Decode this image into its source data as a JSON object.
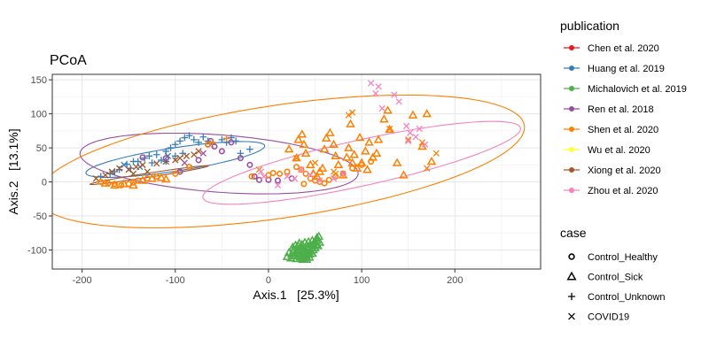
{
  "chart_data": {
    "type": "scatter",
    "title": "PCoA",
    "xlabel": "Axis.1   [25.3%]",
    "ylabel": "Axis.2   [13.1%]",
    "xlim": [
      -232,
      292
    ],
    "ylim": [
      -128,
      158
    ],
    "xticks": [
      -200,
      -100,
      0,
      100,
      200
    ],
    "yticks": [
      -100,
      -50,
      0,
      50,
      100,
      150
    ],
    "grid": true,
    "legend_position": "right",
    "legend_publication_title": "publication",
    "legend_case_title": "case",
    "publications": [
      {
        "key": "chen",
        "name": "Chen et al. 2020",
        "color": "#E41A1C"
      },
      {
        "key": "huang",
        "name": "Huang et al. 2019",
        "color": "#377EB8"
      },
      {
        "key": "mich",
        "name": "Michalovich et al. 2019",
        "color": "#4DAF4A"
      },
      {
        "key": "ren",
        "name": "Ren et al. 2018",
        "color": "#984EA3"
      },
      {
        "key": "shen",
        "name": "Shen et al. 2020",
        "color": "#FF7F00"
      },
      {
        "key": "wu",
        "name": "Wu et al. 2020",
        "color": "#FFFF33"
      },
      {
        "key": "xiong",
        "name": "Xiong et al. 2020",
        "color": "#A65628"
      },
      {
        "key": "zhou",
        "name": "Zhou et al. 2020",
        "color": "#F781BF"
      }
    ],
    "cases": [
      {
        "key": "healthy",
        "name": "Control_Healthy",
        "shape": "circle"
      },
      {
        "key": "sick",
        "name": "Control_Sick",
        "shape": "triangle"
      },
      {
        "key": "unknown",
        "name": "Control_Unknown",
        "shape": "plus"
      },
      {
        "key": "covid",
        "name": "COVID19",
        "shape": "cross"
      }
    ],
    "ellipses": [
      {
        "pub": "huang",
        "cx": -100,
        "cy": 33,
        "rx": 98,
        "ry": 17,
        "angle": 12
      },
      {
        "pub": "ren",
        "cx": -53,
        "cy": 27,
        "rx": 150,
        "ry": 42,
        "angle": -6
      },
      {
        "pub": "shen",
        "cx": 13,
        "cy": 30,
        "rx": 267,
        "ry": 82,
        "angle": 12
      },
      {
        "pub": "zhou",
        "cx": 100,
        "cy": 28,
        "rx": 178,
        "ry": 33,
        "angle": 17
      },
      {
        "pub": "xiong",
        "cx": -128,
        "cy": 10,
        "rx": 65,
        "ry": 3,
        "angle": 12
      }
    ],
    "series": [
      {
        "pub": "huang",
        "case": "unknown",
        "points": [
          [
            -180,
            8
          ],
          [
            -170,
            12
          ],
          [
            -160,
            18
          ],
          [
            -152,
            26
          ],
          [
            -148,
            20
          ],
          [
            -140,
            30
          ],
          [
            -133,
            35
          ],
          [
            -128,
            38
          ],
          [
            -120,
            40
          ],
          [
            -110,
            45
          ],
          [
            -105,
            50
          ],
          [
            -100,
            55
          ],
          [
            -95,
            60
          ],
          [
            -90,
            65
          ],
          [
            -85,
            68
          ],
          [
            -80,
            62
          ],
          [
            -75,
            58
          ],
          [
            -70,
            66
          ],
          [
            -65,
            60
          ],
          [
            -60,
            55
          ],
          [
            -50,
            62
          ],
          [
            -45,
            58
          ],
          [
            -40,
            65
          ],
          [
            -35,
            60
          ],
          [
            -30,
            42
          ],
          [
            -20,
            48
          ],
          [
            -115,
            32
          ],
          [
            -125,
            28
          ],
          [
            -100,
            38
          ],
          [
            -92,
            42
          ],
          [
            -165,
            15
          ],
          [
            -145,
            30
          ],
          [
            -110,
            30
          ]
        ]
      },
      {
        "pub": "huang",
        "case": "covid",
        "points": [
          [
            -155,
            25
          ],
          [
            -138,
            22
          ],
          [
            -108,
            38
          ]
        ]
      },
      {
        "pub": "xiong",
        "case": "covid",
        "points": [
          [
            -185,
            5
          ],
          [
            -175,
            10
          ],
          [
            -168,
            15
          ],
          [
            -160,
            20
          ],
          [
            -150,
            18
          ],
          [
            -142,
            22
          ],
          [
            -135,
            25
          ],
          [
            -120,
            27
          ],
          [
            -110,
            30
          ],
          [
            -100,
            32
          ],
          [
            -95,
            35
          ],
          [
            -88,
            38
          ],
          [
            -80,
            40
          ],
          [
            -130,
            15
          ],
          [
            -145,
            12
          ],
          [
            -75,
            45
          ]
        ]
      },
      {
        "pub": "ren",
        "case": "healthy",
        "points": [
          [
            -135,
            36
          ],
          [
            -110,
            35
          ],
          [
            -95,
            15
          ],
          [
            -75,
            32
          ],
          [
            -65,
            55
          ],
          [
            -62,
            60
          ],
          [
            -58,
            52
          ],
          [
            -40,
            58
          ],
          [
            -20,
            25
          ],
          [
            -15,
            8
          ],
          [
            -10,
            3
          ],
          [
            0,
            3
          ],
          [
            10,
            2
          ],
          [
            25,
            5
          ],
          [
            -30,
            35
          ],
          [
            -50,
            45
          ]
        ]
      },
      {
        "pub": "ren",
        "case": "covid",
        "points": [
          [
            -90,
            28
          ],
          [
            -70,
            42
          ]
        ]
      },
      {
        "pub": "shen",
        "case": "healthy",
        "points": [
          [
            -180,
            0
          ],
          [
            -172,
            -2
          ],
          [
            -165,
            -3
          ],
          [
            -158,
            -5
          ],
          [
            -150,
            -3
          ],
          [
            -145,
            -1
          ],
          [
            -140,
            2
          ],
          [
            -130,
            5
          ],
          [
            -120,
            8
          ],
          [
            -100,
            12
          ],
          [
            -85,
            22
          ],
          [
            -65,
            55
          ],
          [
            -18,
            8
          ],
          [
            0,
            10
          ],
          [
            5,
            13
          ],
          [
            12,
            12
          ],
          [
            20,
            15
          ],
          [
            30,
            22
          ],
          [
            35,
            18
          ],
          [
            40,
            12
          ],
          [
            45,
            5
          ],
          [
            50,
            2
          ],
          [
            55,
            0
          ],
          [
            60,
            -2
          ],
          [
            65,
            3
          ],
          [
            72,
            8
          ],
          [
            80,
            12
          ],
          [
            90,
            20
          ],
          [
            100,
            25
          ],
          [
            110,
            30
          ],
          [
            38,
            -3
          ]
        ]
      },
      {
        "pub": "shen",
        "case": "sick",
        "points": [
          [
            -175,
            -2
          ],
          [
            -165,
            -5
          ],
          [
            -155,
            -3
          ],
          [
            -145,
            -5
          ],
          [
            -135,
            2
          ],
          [
            -125,
            5
          ],
          [
            -115,
            6
          ],
          [
            -110,
            4
          ],
          [
            22,
            48
          ],
          [
            30,
            35
          ],
          [
            32,
            62
          ],
          [
            36,
            70
          ],
          [
            38,
            55
          ],
          [
            40,
            42
          ],
          [
            45,
            25
          ],
          [
            48,
            12
          ],
          [
            52,
            8
          ],
          [
            55,
            15
          ],
          [
            58,
            20
          ],
          [
            60,
            48
          ],
          [
            62,
            64
          ],
          [
            66,
            72
          ],
          [
            70,
            55
          ],
          [
            72,
            38
          ],
          [
            75,
            25
          ],
          [
            80,
            10
          ],
          [
            84,
            36
          ],
          [
            86,
            50
          ],
          [
            88,
            85
          ],
          [
            90,
            28
          ],
          [
            92,
            40
          ],
          [
            95,
            20
          ],
          [
            98,
            65
          ],
          [
            100,
            28
          ],
          [
            104,
            45
          ],
          [
            106,
            18
          ],
          [
            112,
            36
          ],
          [
            118,
            62
          ],
          [
            124,
            92
          ],
          [
            128,
            105
          ],
          [
            130,
            77
          ],
          [
            138,
            28
          ],
          [
            145,
            10
          ],
          [
            155,
            98
          ],
          [
            165,
            52
          ],
          [
            170,
            100
          ],
          [
            175,
            30
          ],
          [
            108,
            58
          ],
          [
            116,
            42
          ]
        ]
      },
      {
        "pub": "shen",
        "case": "covid",
        "points": [
          [
            -10,
            18
          ],
          [
            30,
            35
          ],
          [
            50,
            28
          ],
          [
            70,
            15
          ],
          [
            86,
            98
          ],
          [
            90,
            102
          ],
          [
            130,
            78
          ],
          [
            150,
            62
          ],
          [
            165,
            58
          ],
          [
            170,
            20
          ],
          [
            180,
            42
          ],
          [
            72,
            12
          ]
        ]
      },
      {
        "pub": "shen",
        "case": "unknown",
        "points": [
          [
            -60,
            58
          ],
          [
            -45,
            64
          ]
        ]
      },
      {
        "pub": "zhou",
        "case": "covid",
        "points": [
          [
            -8,
            15
          ],
          [
            -5,
            8
          ],
          [
            10,
            -5
          ],
          [
            20,
            8
          ],
          [
            28,
            5
          ],
          [
            35,
            18
          ],
          [
            45,
            10
          ],
          [
            55,
            2
          ],
          [
            70,
            5
          ],
          [
            80,
            12
          ],
          [
            150,
            60
          ],
          [
            148,
            82
          ],
          [
            152,
            72
          ],
          [
            158,
            66
          ],
          [
            162,
            78
          ],
          [
            110,
            145
          ],
          [
            118,
            140
          ],
          [
            115,
            130
          ],
          [
            122,
            108
          ],
          [
            135,
            128
          ],
          [
            140,
            118
          ],
          [
            168,
            55
          ]
        ]
      },
      {
        "pub": "mich",
        "case": "sick",
        "points": [
          [
            20,
            -110
          ],
          [
            22,
            -104
          ],
          [
            24,
            -112
          ],
          [
            25,
            -106
          ],
          [
            27,
            -101
          ],
          [
            28,
            -109
          ],
          [
            30,
            -113
          ],
          [
            30,
            -104
          ],
          [
            31,
            -99
          ],
          [
            32,
            -107
          ],
          [
            33,
            -102
          ],
          [
            34,
            -111
          ],
          [
            35,
            -96
          ],
          [
            35,
            -106
          ],
          [
            36,
            -101
          ],
          [
            37,
            -109
          ],
          [
            38,
            -112
          ],
          [
            38,
            -98
          ],
          [
            39,
            -104
          ],
          [
            40,
            -107
          ],
          [
            40,
            -101
          ],
          [
            41,
            -110
          ],
          [
            42,
            -95
          ],
          [
            42,
            -104
          ],
          [
            43,
            -99
          ],
          [
            44,
            -106
          ],
          [
            44,
            -111
          ],
          [
            45,
            -92
          ],
          [
            45,
            -102
          ],
          [
            46,
            -97
          ],
          [
            47,
            -105
          ],
          [
            48,
            -91
          ],
          [
            48,
            -100
          ],
          [
            49,
            -94
          ],
          [
            50,
            -88
          ],
          [
            50,
            -97
          ],
          [
            51,
            -92
          ],
          [
            52,
            -86
          ],
          [
            53,
            -94
          ],
          [
            55,
            -89
          ],
          [
            26,
            -96
          ],
          [
            29,
            -93
          ],
          [
            33,
            -90
          ],
          [
            36,
            -92
          ],
          [
            39,
            -89
          ],
          [
            43,
            -88
          ],
          [
            47,
            -86
          ],
          [
            52,
            -82
          ],
          [
            54,
            -80
          ],
          [
            32,
            -94
          ],
          [
            37,
            -114
          ],
          [
            41,
            -114
          ]
        ]
      }
    ]
  }
}
